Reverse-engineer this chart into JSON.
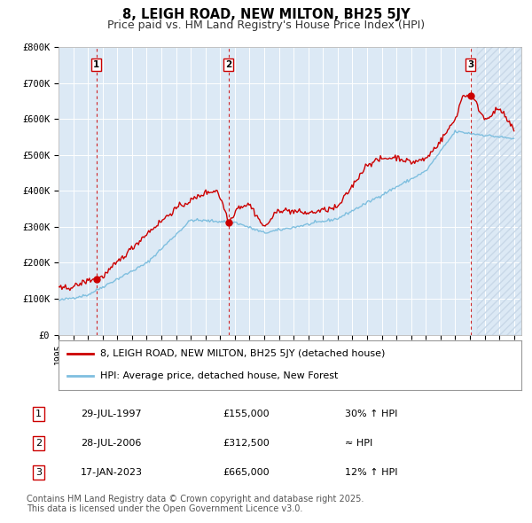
{
  "title": "8, LEIGH ROAD, NEW MILTON, BH25 5JY",
  "subtitle": "Price paid vs. HM Land Registry's House Price Index (HPI)",
  "bg_color": "#dce9f5",
  "outer_bg_color": "#ffffff",
  "ylim": [
    0,
    800000
  ],
  "xlim_start": 1995.0,
  "xlim_end": 2026.5,
  "yticks": [
    0,
    100000,
    200000,
    300000,
    400000,
    500000,
    600000,
    700000,
    800000
  ],
  "ytick_labels": [
    "£0",
    "£100K",
    "£200K",
    "£300K",
    "£400K",
    "£500K",
    "£600K",
    "£700K",
    "£800K"
  ],
  "xticks": [
    1995,
    1996,
    1997,
    1998,
    1999,
    2000,
    2001,
    2002,
    2003,
    2004,
    2005,
    2006,
    2007,
    2008,
    2009,
    2010,
    2011,
    2012,
    2013,
    2014,
    2015,
    2016,
    2017,
    2018,
    2019,
    2020,
    2021,
    2022,
    2023,
    2024,
    2025,
    2026
  ],
  "hpi_line_color": "#7fbfdf",
  "price_line_color": "#cc0000",
  "sale_marker_color": "#cc0000",
  "dashed_line_color": "#cc0000",
  "sales": [
    {
      "num": 1,
      "date": "29-JUL-1997",
      "price": 155000,
      "year": 1997.57,
      "note": "30% ↑ HPI"
    },
    {
      "num": 2,
      "date": "28-JUL-2006",
      "price": 312500,
      "year": 2006.57,
      "note": "≈ HPI"
    },
    {
      "num": 3,
      "date": "17-JAN-2023",
      "price": 665000,
      "year": 2023.04,
      "note": "12% ↑ HPI"
    }
  ],
  "legend_entries": [
    {
      "label": "8, LEIGH ROAD, NEW MILTON, BH25 5JY (detached house)",
      "color": "#cc0000"
    },
    {
      "label": "HPI: Average price, detached house, New Forest",
      "color": "#7fbfdf"
    }
  ],
  "footer": "Contains HM Land Registry data © Crown copyright and database right 2025.\nThis data is licensed under the Open Government Licence v3.0.",
  "grid_color": "#ffffff",
  "title_fontsize": 10.5,
  "subtitle_fontsize": 9,
  "tick_fontsize": 7.5,
  "legend_fontsize": 8,
  "table_fontsize": 8,
  "footer_fontsize": 7
}
